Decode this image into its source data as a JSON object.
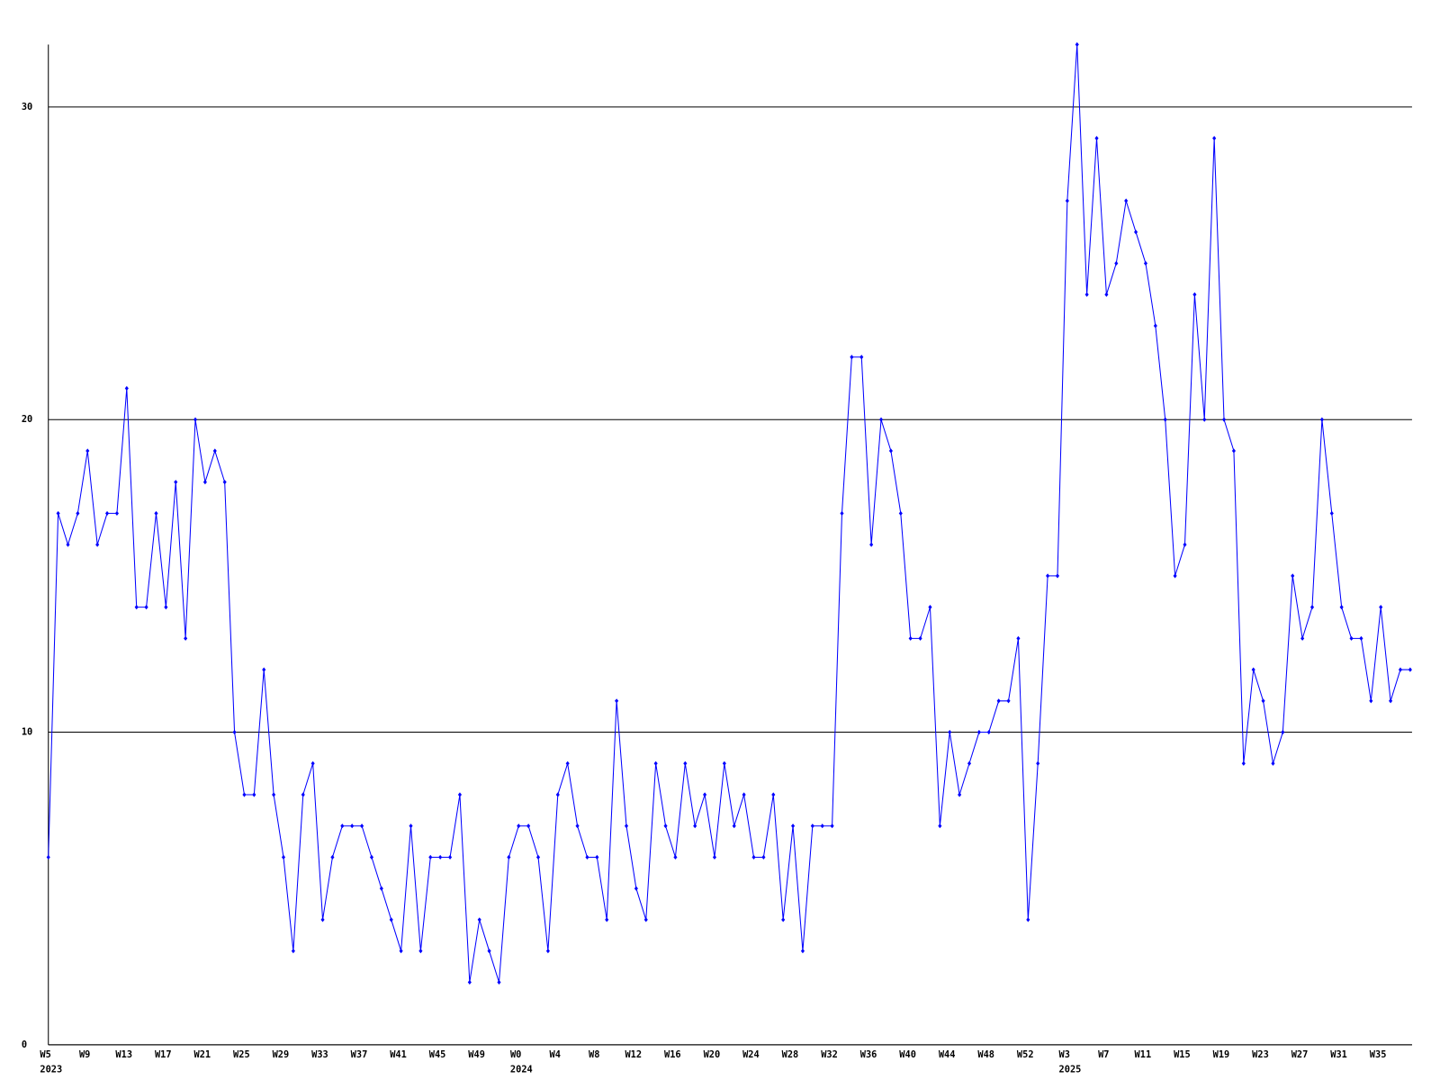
{
  "chart_data": {
    "type": "line",
    "categories": [
      "W5",
      null,
      null,
      null,
      "W9",
      null,
      null,
      null,
      "W13",
      null,
      null,
      null,
      "W17",
      null,
      null,
      null,
      "W21",
      null,
      null,
      null,
      "W25",
      null,
      null,
      null,
      "W29",
      null,
      null,
      null,
      "W33",
      null,
      null,
      null,
      "W37",
      null,
      null,
      null,
      "W41",
      null,
      null,
      null,
      "W45",
      null,
      null,
      null,
      "W49",
      null,
      null,
      null,
      "W0",
      null,
      null,
      null,
      "W4",
      null,
      null,
      null,
      "W8",
      null,
      null,
      null,
      "W12",
      null,
      null,
      null,
      "W16",
      null,
      null,
      null,
      "W20",
      null,
      null,
      null,
      "W24",
      null,
      null,
      null,
      "W28",
      null,
      null,
      null,
      "W32",
      null,
      null,
      null,
      "W36",
      null,
      null,
      null,
      "W40",
      null,
      null,
      null,
      "W44",
      null,
      null,
      null,
      "W48",
      null,
      null,
      null,
      "W52",
      null,
      null,
      null,
      "W3",
      null,
      null,
      null,
      "W7",
      null,
      null,
      null,
      "W11",
      null,
      null,
      null,
      "W15",
      null,
      null,
      null,
      "W19",
      null,
      null,
      null,
      "W23",
      null,
      null,
      null,
      "W27",
      null,
      null,
      null,
      "W31",
      null,
      null,
      null,
      "W35",
      null,
      null,
      null
    ],
    "years": [
      "2023",
      null,
      null,
      null,
      null,
      null,
      null,
      null,
      null,
      null,
      null,
      null,
      null,
      null,
      null,
      null,
      null,
      null,
      null,
      null,
      null,
      null,
      null,
      null,
      null,
      null,
      null,
      null,
      null,
      null,
      null,
      null,
      null,
      null,
      null,
      null,
      null,
      null,
      null,
      null,
      null,
      null,
      null,
      null,
      null,
      null,
      null,
      null,
      "2024",
      null,
      null,
      null,
      null,
      null,
      null,
      null,
      null,
      null,
      null,
      null,
      null,
      null,
      null,
      null,
      null,
      null,
      null,
      null,
      null,
      null,
      null,
      null,
      null,
      null,
      null,
      null,
      null,
      null,
      null,
      null,
      null,
      null,
      null,
      null,
      null,
      null,
      null,
      null,
      null,
      null,
      null,
      null,
      null,
      null,
      null,
      null,
      null,
      null,
      null,
      null,
      null,
      null,
      null,
      null,
      "2025",
      null,
      null,
      null,
      null,
      null,
      null,
      null,
      null,
      null,
      null,
      null,
      null,
      null,
      null,
      null,
      null,
      null,
      null,
      null,
      null,
      null,
      null,
      null,
      null,
      null,
      null,
      null,
      null,
      null,
      null,
      null,
      null,
      null,
      null,
      null
    ],
    "series": [
      {
        "color": "#0000ff",
        "values": [
          6,
          17,
          16,
          17,
          19,
          16,
          17,
          17,
          21,
          14,
          14,
          17,
          14,
          18,
          13,
          20,
          18,
          19,
          18,
          10,
          8,
          8,
          12,
          8,
          6,
          3,
          8,
          9,
          4,
          6,
          7,
          7,
          7,
          6,
          5,
          4,
          3,
          7,
          3,
          6,
          6,
          6,
          8,
          2,
          4,
          3,
          2,
          6,
          7,
          7,
          6,
          3,
          8,
          9,
          7,
          6,
          6,
          4,
          11,
          7,
          5,
          4,
          9,
          7,
          6,
          9,
          7,
          8,
          6,
          9,
          7,
          8,
          6,
          6,
          8,
          4,
          7,
          3,
          7,
          7,
          7,
          17,
          22,
          22,
          16,
          20,
          19,
          17,
          13,
          13,
          14,
          7,
          10,
          8,
          9,
          10,
          10,
          11,
          11,
          13,
          4,
          9,
          15,
          15,
          27,
          32,
          24,
          29,
          24,
          25,
          27,
          26,
          25,
          23,
          20,
          15,
          16,
          24,
          20,
          29,
          20,
          19,
          9,
          12,
          11,
          9,
          10,
          15,
          13,
          14,
          20,
          17,
          14,
          13,
          13,
          11,
          14,
          11,
          12,
          12
        ]
      }
    ],
    "ylim": [
      0,
      32
    ],
    "yticks": [
      0,
      10,
      20,
      30
    ],
    "grid": true
  }
}
